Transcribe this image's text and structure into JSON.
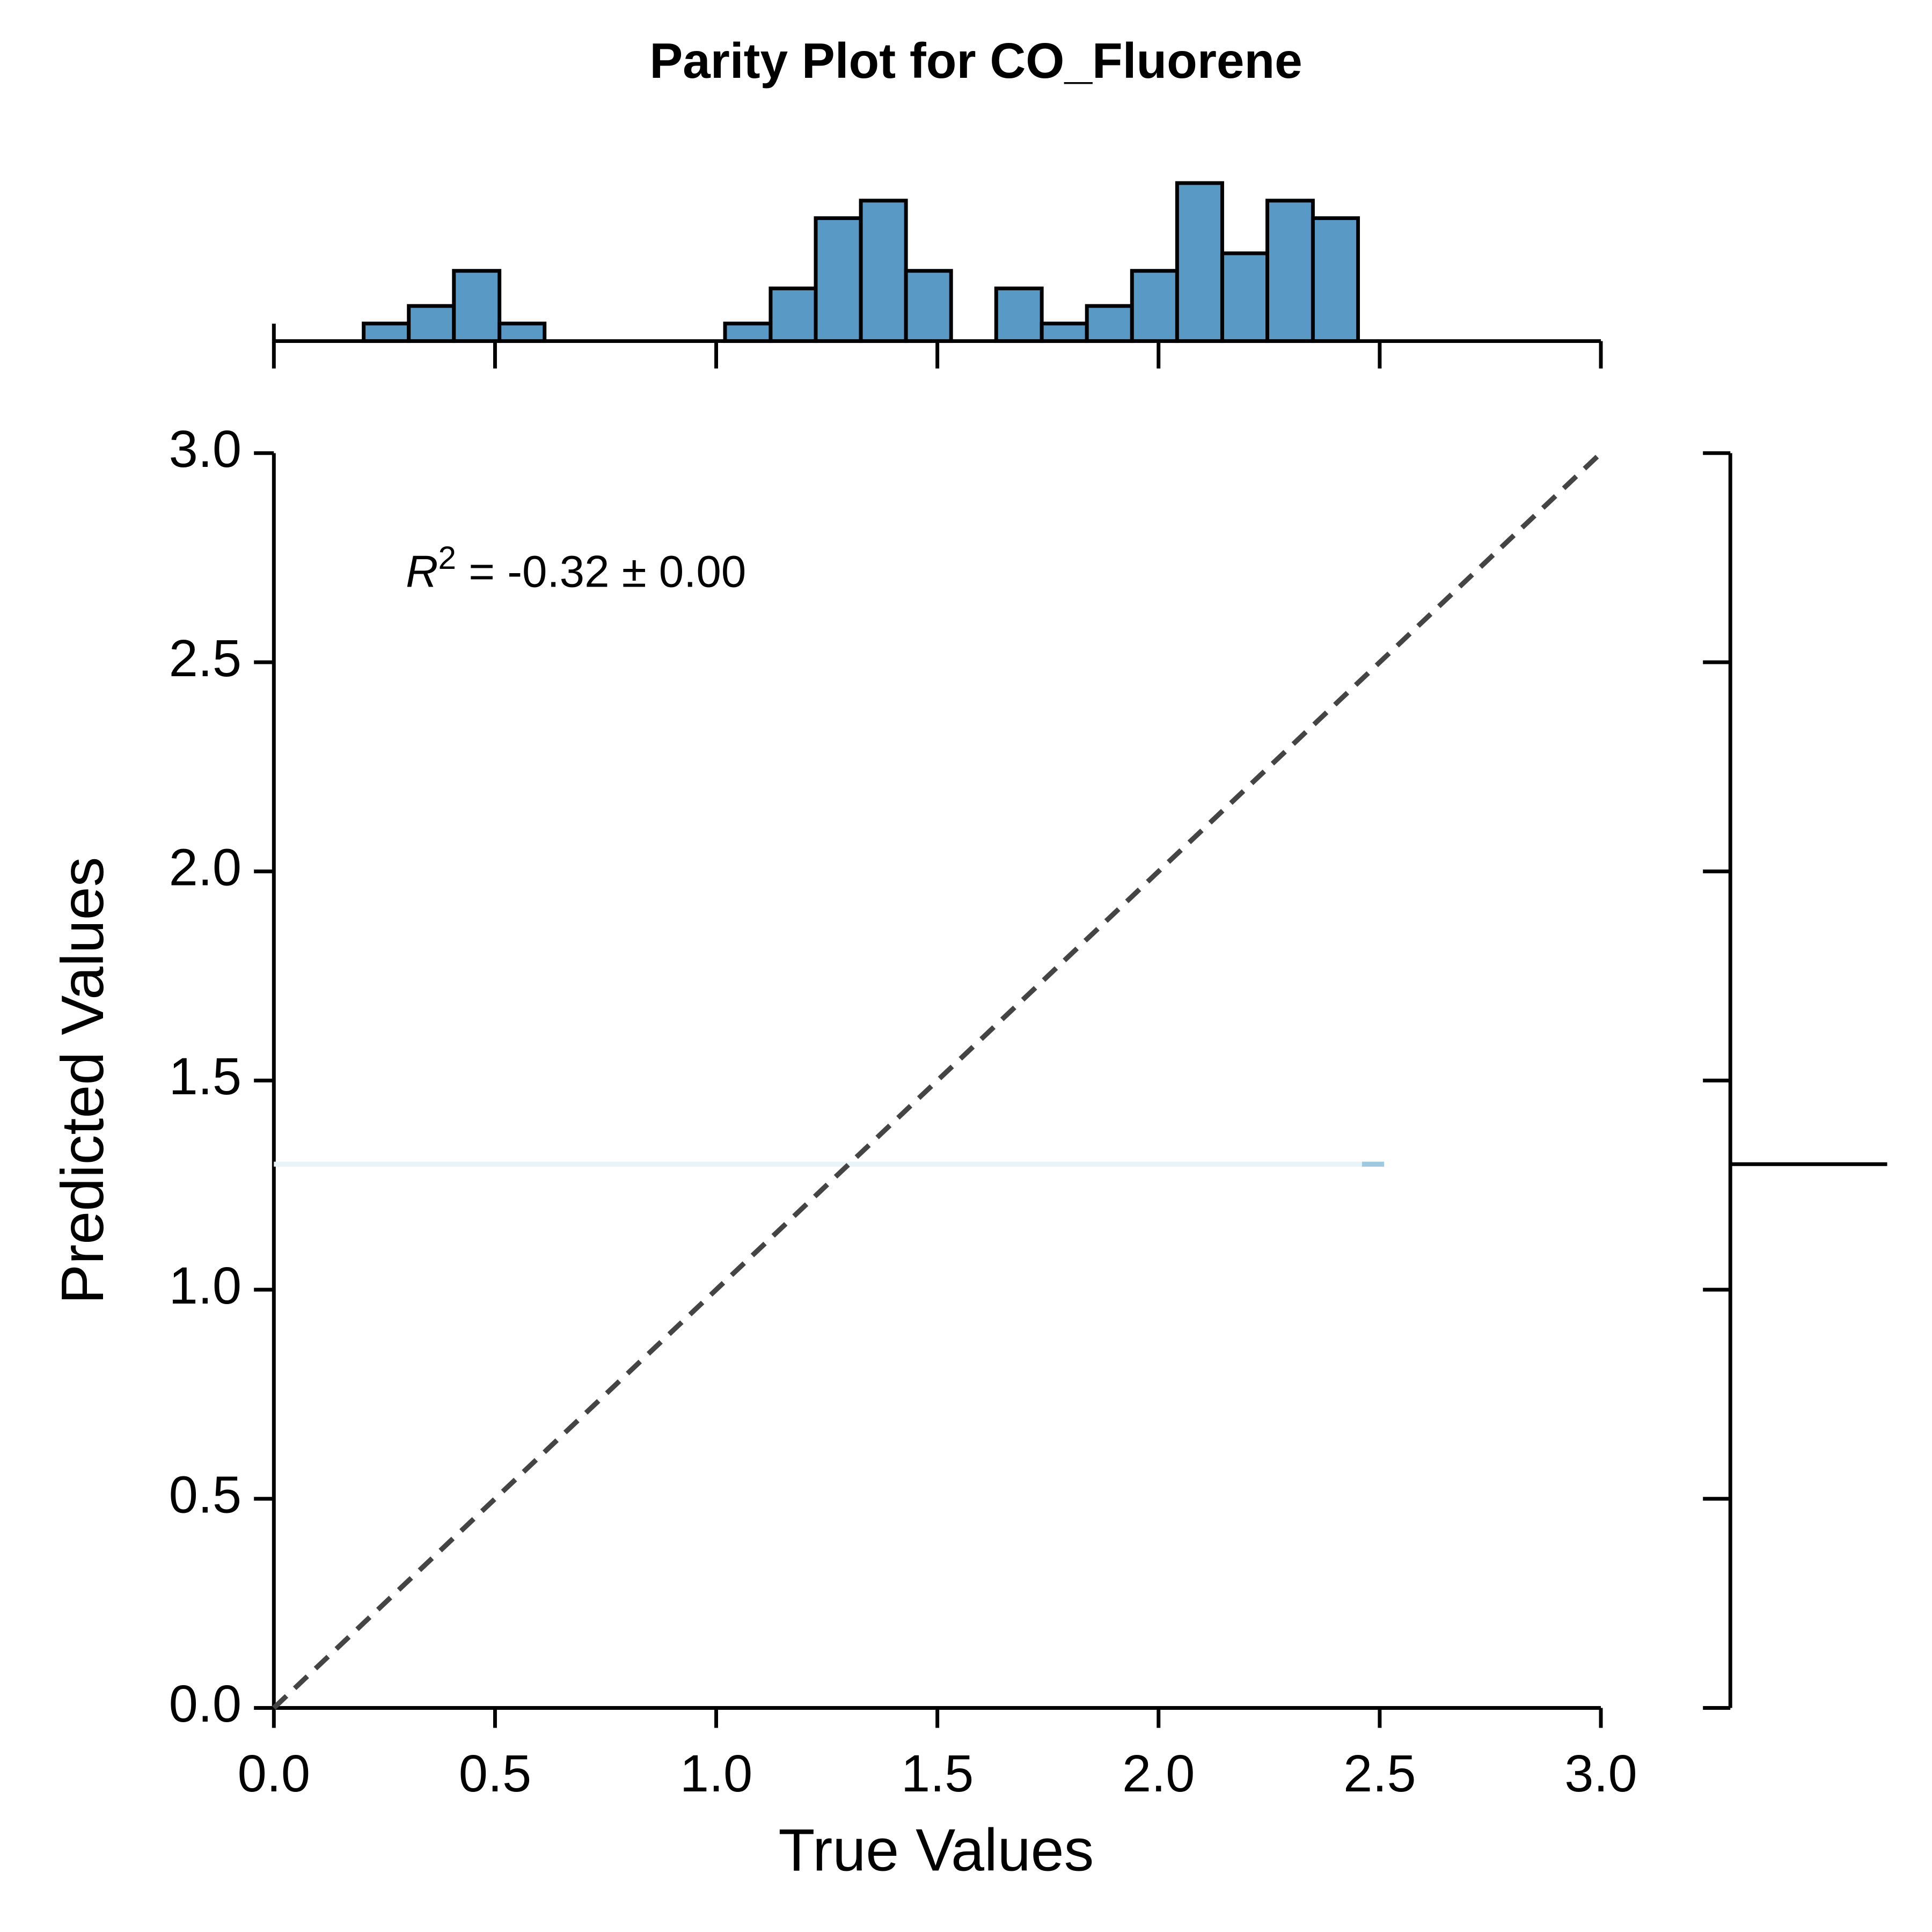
{
  "chart_data": {
    "type": "parity",
    "title": "Parity Plot for CO_Fluorene",
    "x_label": "True Values",
    "y_label": "Predicted Values",
    "annotation": {
      "symbol": "R",
      "exponent": "2",
      "text": "= -0.32 ± 0.00"
    },
    "xlim": [
      0,
      3
    ],
    "ylim": [
      0,
      3
    ],
    "xticks": [
      {
        "value": 0,
        "label": "0.0"
      },
      0.5,
      {
        "value": 1,
        "label": "1.0"
      },
      1.5,
      {
        "value": 2,
        "label": "2.0"
      },
      2.5,
      {
        "value": 3,
        "label": "3.0"
      }
    ],
    "yticks": [
      {
        "value": 0,
        "label": "0.0"
      },
      0.5,
      {
        "value": 1,
        "label": "1.0"
      },
      1.5,
      {
        "value": 2,
        "label": "2.0"
      },
      2.5,
      {
        "value": 3,
        "label": "3.0"
      }
    ],
    "parity_line": {
      "x": [
        0,
        3
      ],
      "y": [
        0,
        3
      ],
      "color": "#444444"
    },
    "prediction_band": {
      "x": [
        0,
        2.51
      ],
      "y": [
        1.3,
        1.3
      ],
      "color": "#e8f3fa"
    },
    "prediction_segment": {
      "x": [
        2.46,
        2.51
      ],
      "y": [
        1.3,
        1.3
      ],
      "color": "#9ecae1"
    },
    "x_histogram": {
      "bins": [
        0.203,
        0.305,
        0.407,
        0.51,
        0.612,
        0.714,
        0.816,
        0.918,
        1.02,
        1.123,
        1.225,
        1.327,
        1.429,
        1.531,
        1.633,
        1.736,
        1.838,
        1.94,
        2.042,
        2.144,
        2.246,
        2.349,
        2.451
      ],
      "counts": [
        1,
        2,
        4,
        1,
        0,
        0,
        0,
        0,
        1,
        3,
        7,
        8,
        4,
        0,
        3,
        1,
        2,
        4,
        9,
        5,
        8,
        7
      ],
      "ylim": [
        0,
        9.5
      ],
      "color": "#5899c5"
    },
    "y_marginal": {
      "value": 1.3
    }
  }
}
